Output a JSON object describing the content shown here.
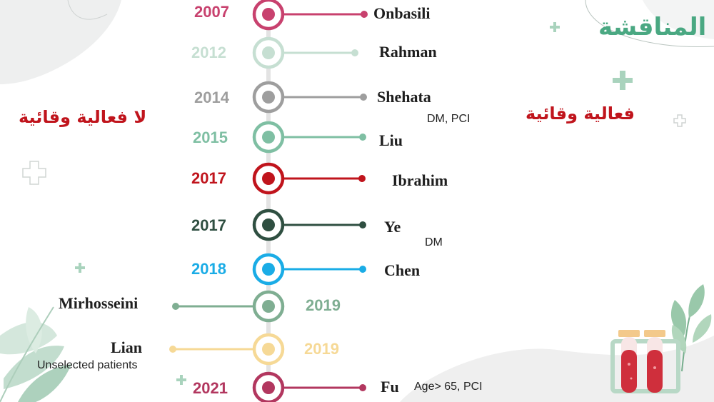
{
  "title": "المناقشة",
  "left_heading": "لا فعالية وقائية",
  "right_heading": "فعالية وقائية",
  "colors": {
    "title": "#4aa882",
    "heading": "#c0141c",
    "spine": "#e3e3e3"
  },
  "entries": [
    {
      "year": "2007",
      "name": "Onbasili",
      "note": "",
      "color": "#c8416e",
      "side": "right"
    },
    {
      "year": "2012",
      "name": "Rahman",
      "note": "",
      "color": "#c6dfd2",
      "side": "right"
    },
    {
      "year": "2014",
      "name": "Shehata",
      "note": "DM, PCI",
      "color": "#9e9e9e",
      "side": "right"
    },
    {
      "year": "2015",
      "name": "Liu",
      "note": "",
      "color": "#7fbfa3",
      "side": "right"
    },
    {
      "year": "2017",
      "name": "Ibrahim",
      "note": "",
      "color": "#c0141c",
      "side": "right"
    },
    {
      "year": "2017",
      "name": "Ye",
      "note": "DM",
      "color": "#2f4f41",
      "side": "right"
    },
    {
      "year": "2018",
      "name": "Chen",
      "note": "",
      "color": "#1aace6",
      "side": "right"
    },
    {
      "year": "2019",
      "name": "Mirhosseini",
      "note": "",
      "color": "#7fae92",
      "side": "left"
    },
    {
      "year": "2019",
      "name": "Lian",
      "note": "Unselected patients",
      "color": "#f6d996",
      "side": "left"
    },
    {
      "year": "2021",
      "name": "Fu",
      "note": "Age> 65, PCI",
      "color": "#b2375f",
      "side": "right"
    }
  ],
  "decor": {
    "plus_icon": "plus-icon",
    "test_tubes_icon": "test-tubes-icon",
    "leaf_icon": "leaf-icon"
  }
}
